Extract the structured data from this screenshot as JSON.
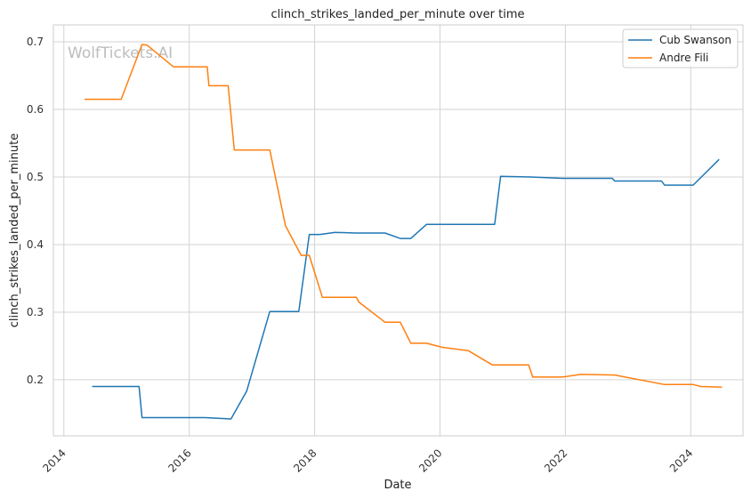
{
  "chart_data": {
    "type": "line",
    "title": "clinch_strikes_landed_per_minute over time",
    "xlabel": "Date",
    "ylabel": "clinch_strikes_landed_per_minute",
    "watermark": "WolfTickets.AI",
    "x_ticks": [
      "2014",
      "2016",
      "2018",
      "2020",
      "2022",
      "2024"
    ],
    "y_ticks": [
      "0.2",
      "0.3",
      "0.4",
      "0.5",
      "0.6",
      "0.7"
    ],
    "xlim": [
      "2013-11-01",
      "2024-11-01"
    ],
    "ylim": [
      0.117,
      0.725
    ],
    "grid": true,
    "legend_position": "top-right",
    "series": [
      {
        "name": "Cub Swanson",
        "color": "#1f77b4",
        "points": [
          [
            "2014-06-15",
            0.19
          ],
          [
            "2015-03-15",
            0.19
          ],
          [
            "2015-04-01",
            0.144
          ],
          [
            "2016-04-01",
            0.144
          ],
          [
            "2016-09-01",
            0.142
          ],
          [
            "2016-12-01",
            0.183
          ],
          [
            "2017-04-15",
            0.301
          ],
          [
            "2017-10-01",
            0.301
          ],
          [
            "2017-12-01",
            0.415
          ],
          [
            "2018-02-01",
            0.415
          ],
          [
            "2018-05-01",
            0.418
          ],
          [
            "2018-09-01",
            0.417
          ],
          [
            "2019-02-15",
            0.417
          ],
          [
            "2019-05-15",
            0.409
          ],
          [
            "2019-07-15",
            0.409
          ],
          [
            "2019-10-15",
            0.43
          ],
          [
            "2020-11-15",
            0.43
          ],
          [
            "2020-12-20",
            0.501
          ],
          [
            "2021-06-15",
            0.5
          ],
          [
            "2021-12-15",
            0.498
          ],
          [
            "2022-07-01",
            0.498
          ],
          [
            "2022-10-01",
            0.498
          ],
          [
            "2022-10-15",
            0.494
          ],
          [
            "2023-07-15",
            0.494
          ],
          [
            "2023-08-01",
            0.488
          ],
          [
            "2024-01-15",
            0.488
          ],
          [
            "2024-06-15",
            0.526
          ]
        ]
      },
      {
        "name": "Andre Fili",
        "color": "#ff7f0e",
        "points": [
          [
            "2014-05-01",
            0.615
          ],
          [
            "2014-12-01",
            0.615
          ],
          [
            "2015-04-01",
            0.696
          ],
          [
            "2015-05-01",
            0.695
          ],
          [
            "2015-10-01",
            0.663
          ],
          [
            "2016-04-15",
            0.663
          ],
          [
            "2016-04-25",
            0.635
          ],
          [
            "2016-08-15",
            0.635
          ],
          [
            "2016-09-20",
            0.54
          ],
          [
            "2017-04-15",
            0.54
          ],
          [
            "2017-07-15",
            0.428
          ],
          [
            "2017-10-15",
            0.384
          ],
          [
            "2017-12-01",
            0.384
          ],
          [
            "2018-02-15",
            0.322
          ],
          [
            "2018-09-01",
            0.322
          ],
          [
            "2018-09-15",
            0.315
          ],
          [
            "2019-02-15",
            0.285
          ],
          [
            "2019-05-15",
            0.285
          ],
          [
            "2019-07-15",
            0.254
          ],
          [
            "2019-10-15",
            0.254
          ],
          [
            "2020-01-15",
            0.248
          ],
          [
            "2020-06-15",
            0.243
          ],
          [
            "2020-11-01",
            0.222
          ],
          [
            "2021-06-01",
            0.222
          ],
          [
            "2021-06-25",
            0.204
          ],
          [
            "2021-12-15",
            0.204
          ],
          [
            "2022-04-01",
            0.208
          ],
          [
            "2022-10-15",
            0.207
          ],
          [
            "2023-08-01",
            0.193
          ],
          [
            "2024-01-15",
            0.193
          ],
          [
            "2024-03-01",
            0.19
          ],
          [
            "2024-07-01",
            0.189
          ]
        ]
      }
    ]
  }
}
